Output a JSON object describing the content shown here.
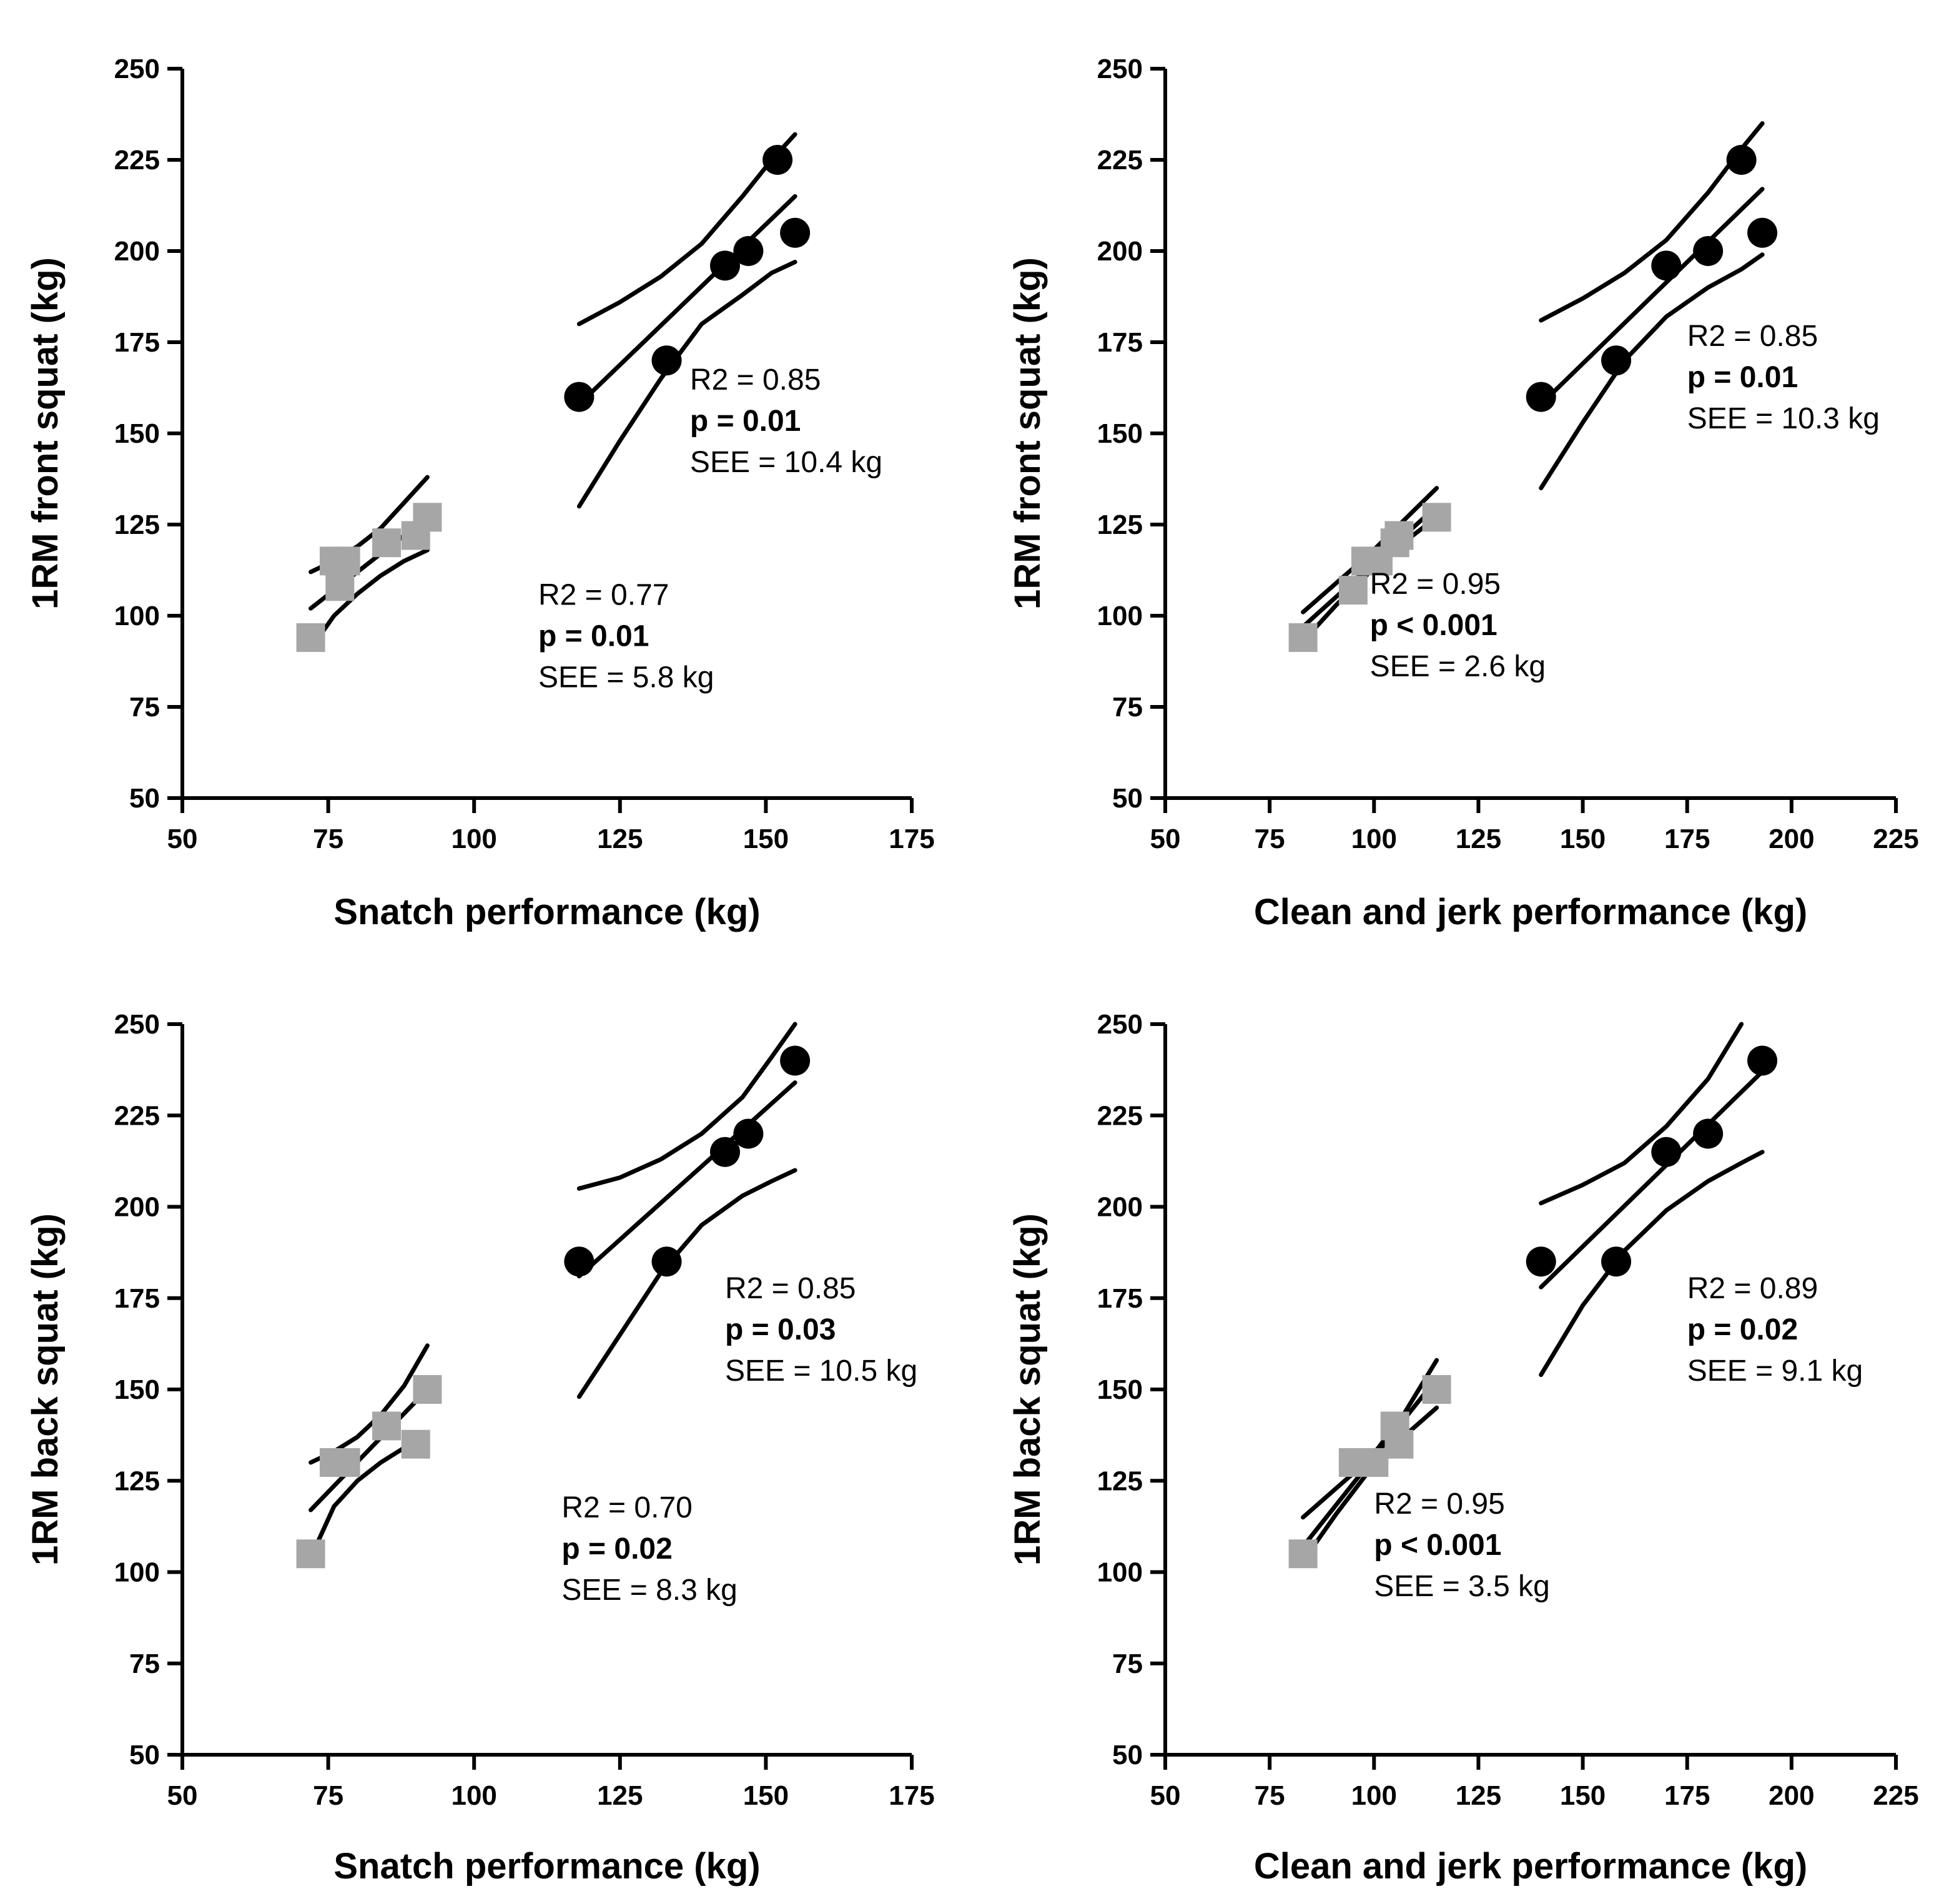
{
  "colors": {
    "circle": "#000000",
    "square": "#a6a6a6",
    "axis": "#000000"
  },
  "chart_data": [
    {
      "type": "scatter",
      "xlabel": "Snatch performance (kg)",
      "ylabel": "1RM front squat (kg)",
      "xlim": [
        50,
        175
      ],
      "ylim": [
        50,
        250
      ],
      "xticks": [
        50,
        75,
        100,
        125,
        150,
        175
      ],
      "yticks": [
        50,
        75,
        100,
        125,
        150,
        175,
        200,
        225,
        250
      ],
      "series": [
        {
          "name": "squares",
          "marker": "square",
          "x": [
            72,
            76,
            77,
            78,
            85,
            90,
            92
          ],
          "y": [
            94,
            115,
            108,
            115,
            120,
            122,
            127
          ],
          "fit": {
            "x": [
              72,
              92
            ],
            "y": [
              102,
              127
            ]
          },
          "band_upper": {
            "x": [
              72,
              76,
              80,
              84,
              88,
              92
            ],
            "y": [
              112,
              115,
              119,
              124,
              131,
              138
            ]
          },
          "band_lower": {
            "x": [
              72,
              76,
              80,
              84,
              88,
              92
            ],
            "y": [
              91,
              100,
              106,
              111,
              115,
              118
            ]
          },
          "annotation": {
            "r2": "R2 = 0.77",
            "p": "p = 0.01",
            "see": "SEE = 5.8 kg",
            "x": 111,
            "y": 103
          }
        },
        {
          "name": "circles",
          "marker": "circle",
          "x": [
            118,
            133,
            143,
            147,
            152,
            155
          ],
          "y": [
            160,
            170,
            196,
            200,
            225,
            205
          ],
          "fit": {
            "x": [
              118,
              155
            ],
            "y": [
              158,
              215
            ]
          },
          "band_upper": {
            "x": [
              118,
              125,
              132,
              139,
              146,
              151,
              155
            ],
            "y": [
              180,
              186,
              193,
              202,
              215,
              225,
              232
            ]
          },
          "band_lower": {
            "x": [
              118,
              125,
              132,
              139,
              146,
              151,
              155
            ],
            "y": [
              130,
              148,
              165,
              180,
              188,
              194,
              197
            ]
          },
          "annotation": {
            "r2": "R2 = 0.85",
            "p": "p = 0.01",
            "see": "SEE = 10.4 kg",
            "x": 137,
            "y": 162
          }
        }
      ]
    },
    {
      "type": "scatter",
      "xlabel": "Clean and jerk performance (kg)",
      "ylabel": "1RM  front squat (kg)",
      "xlim": [
        50,
        225
      ],
      "ylim": [
        50,
        250
      ],
      "xticks": [
        50,
        75,
        100,
        125,
        150,
        175,
        200,
        225
      ],
      "yticks": [
        50,
        75,
        100,
        125,
        150,
        175,
        200,
        225,
        250
      ],
      "series": [
        {
          "name": "squares",
          "marker": "square",
          "x": [
            83,
            95,
            98,
            101,
            105,
            106,
            115
          ],
          "y": [
            94,
            107,
            115,
            115,
            120,
            122,
            127
          ],
          "fit": {
            "x": [
              83,
              115
            ],
            "y": [
              97,
              130
            ]
          },
          "band_upper": {
            "x": [
              83,
              91,
              99,
              107,
              115
            ],
            "y": [
              101,
              109,
              117,
              126,
              135
            ]
          },
          "band_lower": {
            "x": [
              83,
              91,
              99,
              107,
              115
            ],
            "y": [
              93,
              103,
              112,
              120,
              127
            ]
          },
          "annotation": {
            "r2": "R2 = 0.95",
            "p": "p < 0.001",
            "see": "SEE = 2.6 kg",
            "x": 99,
            "y": 106
          }
        },
        {
          "name": "circles",
          "marker": "circle",
          "x": [
            140,
            158,
            170,
            180,
            188,
            193
          ],
          "y": [
            160,
            170,
            196,
            200,
            225,
            205
          ],
          "fit": {
            "x": [
              140,
              193
            ],
            "y": [
              158,
              217
            ]
          },
          "band_upper": {
            "x": [
              140,
              150,
              160,
              170,
              180,
              188,
              193
            ],
            "y": [
              181,
              187,
              194,
              203,
              216,
              228,
              235
            ]
          },
          "band_lower": {
            "x": [
              140,
              150,
              160,
              170,
              180,
              188,
              193
            ],
            "y": [
              135,
              153,
              170,
              182,
              190,
              195,
              199
            ]
          },
          "annotation": {
            "r2": "R2 = 0.85",
            "p": "p = 0.01",
            "see": "SEE = 10.3 kg",
            "x": 175,
            "y": 174
          }
        }
      ]
    },
    {
      "type": "scatter",
      "xlabel": "Snatch performance (kg)",
      "ylabel": "1RM back squat (kg)",
      "xlim": [
        50,
        175
      ],
      "ylim": [
        50,
        250
      ],
      "xticks": [
        50,
        75,
        100,
        125,
        150,
        175
      ],
      "yticks": [
        50,
        75,
        100,
        125,
        150,
        175,
        200,
        225,
        250
      ],
      "series": [
        {
          "name": "squares",
          "marker": "square",
          "x": [
            72,
            76,
            78,
            85,
            90,
            92
          ],
          "y": [
            105,
            130,
            130,
            140,
            135,
            150
          ],
          "fit": {
            "x": [
              72,
              92
            ],
            "y": [
              117,
              150
            ]
          },
          "band_upper": {
            "x": [
              72,
              76,
              80,
              84,
              88,
              92
            ],
            "y": [
              130,
              133,
              137,
              143,
              151,
              162
            ]
          },
          "band_lower": {
            "x": [
              72,
              76,
              80,
              84,
              88,
              92
            ],
            "y": [
              104,
              118,
              125,
              130,
              134,
              137
            ]
          },
          "annotation": {
            "r2": "R2 = 0.70",
            "p": "p = 0.02",
            "see": "SEE = 8.3 kg",
            "x": 115,
            "y": 115
          }
        },
        {
          "name": "circles",
          "marker": "circle",
          "x": [
            118,
            133,
            143,
            147,
            155
          ],
          "y": [
            185,
            185,
            215,
            220,
            240
          ],
          "fit": {
            "x": [
              118,
              155
            ],
            "y": [
              181,
              234
            ]
          },
          "band_upper": {
            "x": [
              118,
              125,
              132,
              139,
              146,
              151,
              155
            ],
            "y": [
              205,
              208,
              213,
              220,
              230,
              241,
              250
            ]
          },
          "band_lower": {
            "x": [
              118,
              125,
              132,
              139,
              146,
              151,
              155
            ],
            "y": [
              148,
              165,
              182,
              195,
              203,
              207,
              210
            ]
          },
          "annotation": {
            "r2": "R2 = 0.85",
            "p": "p = 0.03",
            "see": "SEE = 10.5 kg",
            "x": 143,
            "y": 175
          }
        }
      ]
    },
    {
      "type": "scatter",
      "xlabel": "Clean and jerk performance (kg)",
      "ylabel": "1RM back squat (kg)",
      "xlim": [
        50,
        225
      ],
      "ylim": [
        50,
        250
      ],
      "xticks": [
        50,
        75,
        100,
        125,
        150,
        175,
        200,
        225
      ],
      "yticks": [
        50,
        75,
        100,
        125,
        150,
        175,
        200,
        225,
        250
      ],
      "series": [
        {
          "name": "squares",
          "marker": "square",
          "x": [
            83,
            95,
            100,
            105,
            106,
            115
          ],
          "y": [
            105,
            130,
            130,
            140,
            135,
            150
          ],
          "fit": {
            "x": [
              83,
              115
            ],
            "y": [
              107,
              153
            ]
          },
          "band_upper": {
            "x": [
              83,
              91,
              99,
              107,
              115
            ],
            "y": [
              115,
              123,
              131,
              143,
              158
            ]
          },
          "band_lower": {
            "x": [
              83,
              91,
              99,
              107,
              115
            ],
            "y": [
              103,
              116,
              128,
              137,
              145
            ]
          },
          "annotation": {
            "r2": "R2 = 0.95",
            "p": "p < 0.001",
            "see": "SEE = 3.5 kg",
            "x": 100,
            "y": 116
          }
        },
        {
          "name": "circles",
          "marker": "circle",
          "x": [
            140,
            158,
            170,
            180,
            193
          ],
          "y": [
            185,
            185,
            215,
            220,
            240
          ],
          "fit": {
            "x": [
              140,
              193
            ],
            "y": [
              178,
              237
            ]
          },
          "band_upper": {
            "x": [
              140,
              150,
              160,
              170,
              180,
              188
            ],
            "y": [
              201,
              206,
              212,
              222,
              235,
              250
            ]
          },
          "band_lower": {
            "x": [
              140,
              150,
              160,
              170,
              180,
              188,
              193
            ],
            "y": [
              154,
              173,
              188,
              199,
              207,
              212,
              215
            ]
          },
          "annotation": {
            "r2": "R2 = 0.89",
            "p": "p = 0.02",
            "see": "SEE = 9.1 kg",
            "x": 175,
            "y": 175
          }
        }
      ]
    }
  ]
}
